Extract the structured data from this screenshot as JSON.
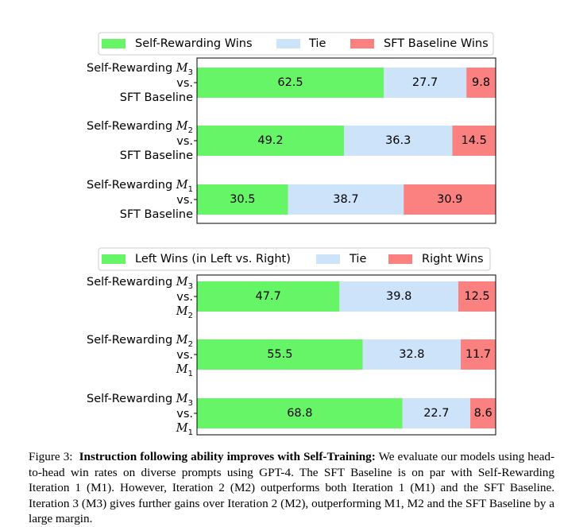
{
  "colors": {
    "left": "#66f566",
    "tie": "#cce3fa",
    "right": "#fb8181"
  },
  "chart_data": [
    {
      "type": "bar",
      "orientation": "horizontal-stacked",
      "legend": [
        "Self-Rewarding Wins",
        "Tie",
        "SFT Baseline Wins"
      ],
      "categories": [
        [
          "Self-Rewarding M3",
          "vs.",
          "SFT Baseline"
        ],
        [
          "Self-Rewarding M2",
          "vs.",
          "SFT Baseline"
        ],
        [
          "Self-Rewarding M1",
          "vs.",
          "SFT Baseline"
        ]
      ],
      "series": [
        {
          "name": "Self-Rewarding Wins",
          "values": [
            62.5,
            49.2,
            30.5
          ]
        },
        {
          "name": "Tie",
          "values": [
            27.7,
            36.3,
            38.7
          ]
        },
        {
          "name": "SFT Baseline Wins",
          "values": [
            9.8,
            14.5,
            30.9
          ]
        }
      ],
      "value_labels": [
        [
          "62.5",
          "27.7",
          "9.8"
        ],
        [
          "49.2",
          "36.3",
          "14.5"
        ],
        [
          "30.5",
          "38.7",
          "30.9"
        ]
      ],
      "xlim": [
        0,
        100
      ]
    },
    {
      "type": "bar",
      "orientation": "horizontal-stacked",
      "legend": [
        "Left Wins (in Left vs. Right)",
        "Tie",
        "Right Wins"
      ],
      "categories": [
        [
          "Self-Rewarding M3",
          "vs.",
          "M2"
        ],
        [
          "Self-Rewarding M2",
          "vs.",
          "M1"
        ],
        [
          "Self-Rewarding M3",
          "vs.",
          "M1"
        ]
      ],
      "series": [
        {
          "name": "Left Wins",
          "values": [
            47.7,
            55.5,
            68.8
          ]
        },
        {
          "name": "Tie",
          "values": [
            39.8,
            32.8,
            22.7
          ]
        },
        {
          "name": "Right Wins",
          "values": [
            12.5,
            11.7,
            8.6
          ]
        }
      ],
      "value_labels": [
        [
          "47.7",
          "39.8",
          "12.5"
        ],
        [
          "55.5",
          "32.8",
          "11.7"
        ],
        [
          "68.8",
          "22.7",
          "8.6"
        ]
      ],
      "xlim": [
        0,
        100
      ]
    }
  ],
  "caption": {
    "label": "Figure 3:",
    "bold": "Instruction following ability improves with Self-Training:",
    "text": "We evaluate our models using head-to-head win rates on diverse prompts using GPT-4. The SFT Baseline is on par with Self-Rewarding Iteration 1 (M1). However, Iteration 2 (M2) outperforms both Iteration 1 (M1) and the SFT Baseline. Iteration 3 (M3) gives further gains over Iteration 2 (M2), outperforming M1, M2 and the SFT Baseline by a large margin."
  }
}
